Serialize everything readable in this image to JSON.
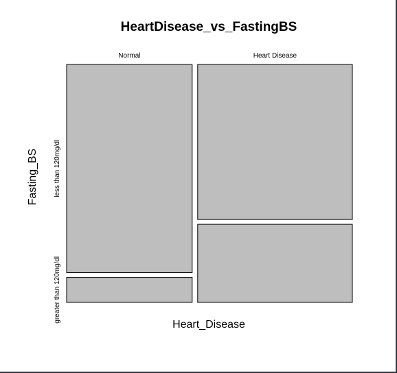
{
  "chart_data": {
    "type": "mosaic",
    "title": "HeartDisease_vs_FastingBS",
    "xlabel": "Heart_Disease",
    "ylabel": "Fasting_BS",
    "x_categories": [
      "Normal",
      "Heart Disease"
    ],
    "y_categories": [
      "less than 120mg/dl",
      "greater than 120mg/dl"
    ],
    "x_proportions": [
      0.448,
      0.552
    ],
    "conditional_y_proportions": [
      [
        0.893,
        0.107
      ],
      [
        0.665,
        0.335
      ]
    ],
    "fill_color": "#bebebe",
    "border_color": "#000000"
  }
}
